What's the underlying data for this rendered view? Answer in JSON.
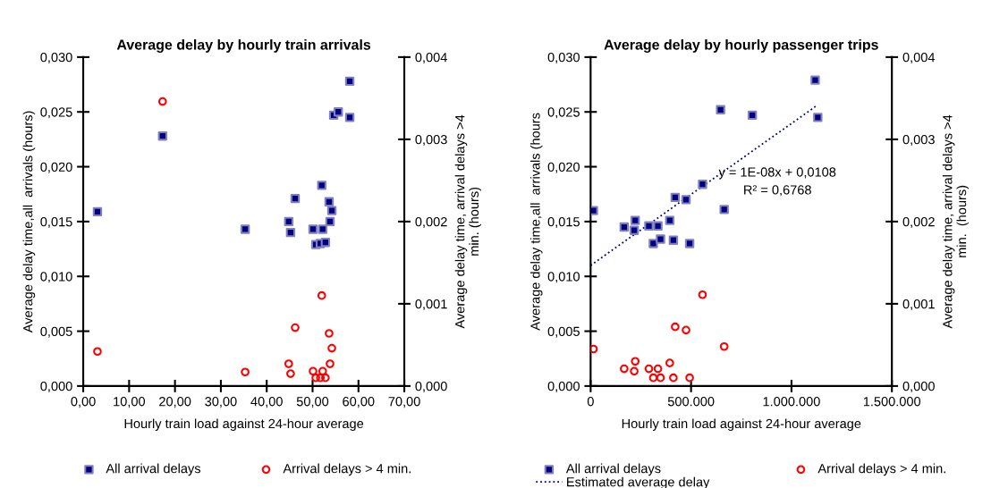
{
  "chart_data": [
    {
      "type": "scatter",
      "title": "Average delay by hourly train arrivals",
      "xlabel": "Hourly train load against 24-hour average",
      "ylabel": "Average delay time,all  arrivals (hours)",
      "y2label": "Average delay time, arrival delays >4\nmin. (hours)",
      "xlim": [
        0,
        70
      ],
      "xticks": [
        {
          "value": 0,
          "label": "0,00"
        },
        {
          "value": 10,
          "label": "10,00"
        },
        {
          "value": 20,
          "label": "20,00"
        },
        {
          "value": 30,
          "label": "30,00"
        },
        {
          "value": 40,
          "label": "40,00"
        },
        {
          "value": 50,
          "label": "50,00"
        },
        {
          "value": 60,
          "label": "60,00"
        },
        {
          "value": 70,
          "label": "70,00"
        }
      ],
      "ylim": [
        0,
        0.03
      ],
      "yticks": [
        {
          "value": 0,
          "label": "0,000"
        },
        {
          "value": 0.005,
          "label": "0,005"
        },
        {
          "value": 0.01,
          "label": "0,010"
        },
        {
          "value": 0.015,
          "label": "0,015"
        },
        {
          "value": 0.02,
          "label": "0,020"
        },
        {
          "value": 0.025,
          "label": "0,025"
        },
        {
          "value": 0.03,
          "label": "0,030"
        }
      ],
      "y2lim": [
        0,
        0.004
      ],
      "y2ticks": [
        {
          "value": 0,
          "label": "0,000"
        },
        {
          "value": 0.001,
          "label": "0,001"
        },
        {
          "value": 0.002,
          "label": "0,002"
        },
        {
          "value": 0.003,
          "label": "0,003"
        },
        {
          "value": 0.004,
          "label": "0,004"
        }
      ],
      "legend": "bottom",
      "grid": false,
      "series": [
        {
          "name": "All arrival delays",
          "color": "#000080",
          "marker": "square",
          "x": [
            3.1,
            17.3,
            58.1,
            54.6,
            55.6,
            58.1,
            52.0,
            46.2,
            53.6,
            54.2,
            44.8,
            53.8,
            35.3,
            45.2,
            50.1,
            52.2,
            50.7,
            51.7,
            52.8
          ],
          "values": [
            0.0159,
            0.0228,
            0.0278,
            0.0247,
            0.025,
            0.0245,
            0.0183,
            0.0171,
            0.0168,
            0.016,
            0.015,
            0.015,
            0.0143,
            0.014,
            0.0143,
            0.0143,
            0.0129,
            0.013,
            0.0131
          ]
        },
        {
          "name": "Arrival delays > 4 min.",
          "color": "#ff0000",
          "marker": "circle",
          "axis": "y2",
          "x": [
            17.3,
            52.0,
            46.2,
            53.6,
            3.1,
            54.2,
            44.8,
            53.8,
            35.3,
            45.2,
            50.1,
            52.2,
            50.7,
            51.7,
            52.8
          ],
          "values": [
            0.00346,
            0.0011,
            0.00071,
            0.00064,
            0.00042,
            0.00046,
            0.00027,
            0.00027,
            0.00017,
            0.00015,
            0.00018,
            0.00018,
            0.0001,
            0.0001,
            0.0001
          ]
        }
      ]
    },
    {
      "type": "scatter",
      "title": "Average delay by hourly passenger trips",
      "xlabel": "Hourly train load against 24-hour average",
      "ylabel": "Average delay time,all  arrivals (hours",
      "y2label": "Average delay time, arrival delays >4\nmin.  (hours)",
      "xlim": [
        0,
        1500000
      ],
      "xticks": [
        0,
        {
          "value": 500000,
          "label": "500.000"
        },
        {
          "value": 1000000,
          "label": "1.000.000"
        },
        {
          "value": 1500000,
          "label": "1.500.000"
        }
      ],
      "ylim": [
        0,
        0.03
      ],
      "yticks": [
        {
          "value": 0,
          "label": "0,000"
        },
        {
          "value": 0.005,
          "label": "0,005"
        },
        {
          "value": 0.01,
          "label": "0,010"
        },
        {
          "value": 0.015,
          "label": "0,015"
        },
        {
          "value": 0.02,
          "label": "0,020"
        },
        {
          "value": 0.025,
          "label": "0,025"
        },
        {
          "value": 0.03,
          "label": "0,030"
        }
      ],
      "y2lim": [
        0,
        0.004
      ],
      "y2ticks": [
        {
          "value": 0,
          "label": "0,000"
        },
        {
          "value": 0.001,
          "label": "0,001"
        },
        {
          "value": 0.002,
          "label": "0,002"
        },
        {
          "value": 0.003,
          "label": "0,003"
        },
        {
          "value": 0.004,
          "label": "0,004"
        }
      ],
      "legend": "bottom",
      "grid": false,
      "annotations": [
        "y = 1E-08x + 0,0108\nR² = 0,6768"
      ],
      "series": [
        {
          "name": "All arrival delays",
          "color": "#000080",
          "marker": "square",
          "x": [
            14000,
            167000,
            222000,
            217000,
            290000,
            335000,
            394000,
            421000,
            475000,
            557000,
            647000,
            665000,
            805000,
            1118000,
            1131000,
            312000,
            348000,
            412000,
            493000
          ],
          "values": [
            0.016,
            0.0145,
            0.0151,
            0.0142,
            0.0146,
            0.0146,
            0.0151,
            0.0172,
            0.017,
            0.0184,
            0.0252,
            0.0161,
            0.0247,
            0.0279,
            0.0245,
            0.013,
            0.0134,
            0.0133,
            0.013
          ]
        },
        {
          "name": "Estimated average delay",
          "type": "line",
          "color": "#000080",
          "marker": "none",
          "line_style": "dotted",
          "x": [
            0,
            1120000
          ],
          "values": [
            0.011,
            0.0255
          ]
        },
        {
          "name": "Arrival delays > 4 min.",
          "color": "#ff0000",
          "marker": "circle",
          "axis": "y2",
          "x": [
            14000,
            167000,
            222000,
            217000,
            290000,
            335000,
            312000,
            348000,
            412000,
            493000,
            394000,
            421000,
            475000,
            557000,
            665000
          ],
          "values": [
            0.00045,
            0.00021,
            0.0003,
            0.00018,
            0.00021,
            0.00021,
            0.0001,
            0.0001,
            0.0001,
            0.0001,
            0.00028,
            0.00072,
            0.00068,
            0.00111,
            0.00048
          ]
        }
      ]
    }
  ]
}
